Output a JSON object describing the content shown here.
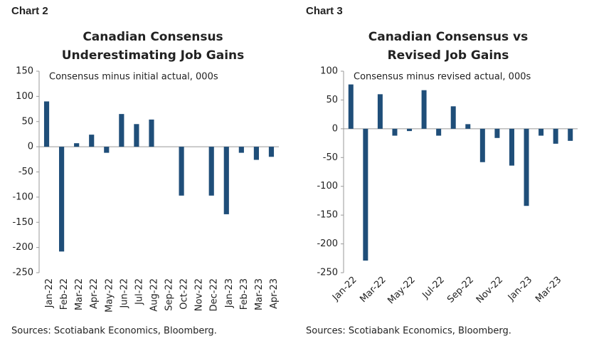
{
  "chart_data": [
    {
      "type": "bar",
      "label": "Chart 2",
      "title": [
        "Canadian Consensus",
        "Underestimating Job Gains"
      ],
      "subtitle": "Consensus minus initial actual, 000s",
      "source": "Sources: Scotiabank Economics, Bloomberg.",
      "categories": [
        "Jan-22",
        "Feb-22",
        "Mar-22",
        "Apr-22",
        "May-22",
        "Jun-22",
        "Jul-22",
        "Aug-22",
        "Sep-22",
        "Oct-22",
        "Nov-22",
        "Dec-22",
        "Jan-23",
        "Feb-23",
        "Mar-23",
        "Apr-23"
      ],
      "values": [
        90,
        -208,
        7,
        24,
        -12,
        65,
        45,
        54,
        0,
        -97,
        0,
        -97,
        -134,
        -12,
        -26,
        -20
      ],
      "color": "#1f4e79",
      "ylim": [
        -250,
        150
      ],
      "yticks": [
        -250,
        -200,
        -150,
        -100,
        -50,
        0,
        50,
        100,
        150
      ]
    },
    {
      "type": "bar",
      "label": "Chart 3",
      "title": [
        "Canadian Consensus vs",
        "Revised Job Gains"
      ],
      "subtitle": "Consensus minus revised actual, 000s",
      "source": "Sources: Scotiabank Economics, Bloomberg.",
      "categories": [
        "Jan-22",
        null,
        "Mar-22",
        null,
        "May-22",
        null,
        "Jul-22",
        null,
        "Sep-22",
        null,
        "Nov-22",
        null,
        "Jan-23",
        null,
        "Mar-23",
        null
      ],
      "values": [
        77,
        -229,
        60,
        -12,
        -4,
        67,
        -12,
        39,
        8,
        -58,
        -16,
        -64,
        -134,
        -12,
        -26,
        -21
      ],
      "color": "#1f4e79",
      "ylim": [
        -250,
        100
      ],
      "yticks": [
        -250,
        -200,
        -150,
        -100,
        -50,
        0,
        50,
        100
      ]
    }
  ]
}
